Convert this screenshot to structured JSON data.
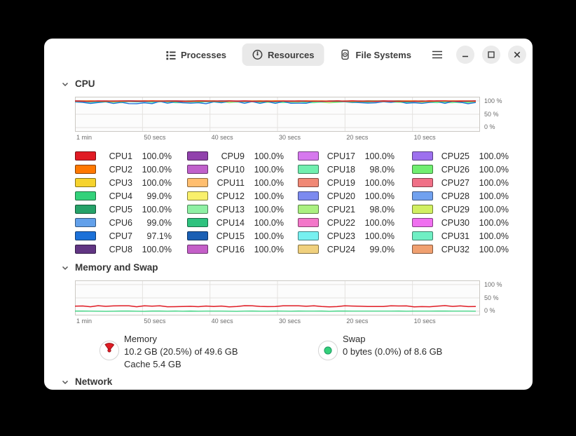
{
  "header": {
    "tabs": [
      {
        "label": "Processes",
        "icon": "list-icon",
        "selected": false
      },
      {
        "label": "Resources",
        "icon": "gauge-icon",
        "selected": true
      },
      {
        "label": "File Systems",
        "icon": "disk-icon",
        "selected": false
      }
    ],
    "menu_icon": "hamburger-menu-icon",
    "window_controls": [
      "minimize",
      "maximize",
      "close"
    ]
  },
  "cpu": {
    "title": "CPU",
    "yticks": [
      "100 %",
      "50 %",
      "0 %"
    ],
    "xticks": [
      "1 min",
      "50 secs",
      "40 secs",
      "30 secs",
      "20 secs",
      "10 secs"
    ],
    "legend": [
      {
        "name": "CPU1",
        "value": "100.0%",
        "color": "#e01b24"
      },
      {
        "name": "CPU2",
        "value": "100.0%",
        "color": "#ff7800"
      },
      {
        "name": "CPU3",
        "value": "100.0%",
        "color": "#f6d32d"
      },
      {
        "name": "CPU4",
        "value": "99.0%",
        "color": "#33d17a"
      },
      {
        "name": "CPU5",
        "value": "100.0%",
        "color": "#26a269"
      },
      {
        "name": "CPU6",
        "value": "99.0%",
        "color": "#62a0ea"
      },
      {
        "name": "CPU7",
        "value": "97.1%",
        "color": "#1c71d8"
      },
      {
        "name": "CPU8",
        "value": "100.0%",
        "color": "#613583"
      },
      {
        "name": "CPU9",
        "value": "100.0%",
        "color": "#9141ac"
      },
      {
        "name": "CPU10",
        "value": "100.0%",
        "color": "#c061cb"
      },
      {
        "name": "CPU11",
        "value": "100.0%",
        "color": "#ffbe6f"
      },
      {
        "name": "CPU12",
        "value": "100.0%",
        "color": "#f9f06b"
      },
      {
        "name": "CPU13",
        "value": "100.0%",
        "color": "#8ff0a4"
      },
      {
        "name": "CPU14",
        "value": "100.0%",
        "color": "#2ec27e"
      },
      {
        "name": "CPU15",
        "value": "100.0%",
        "color": "#1a5fb4"
      },
      {
        "name": "CPU16",
        "value": "100.0%",
        "color": "#c45fc8"
      },
      {
        "name": "CPU17",
        "value": "100.0%",
        "color": "#d678ee"
      },
      {
        "name": "CPU18",
        "value": "98.0%",
        "color": "#70efaf"
      },
      {
        "name": "CPU19",
        "value": "100.0%",
        "color": "#f08875"
      },
      {
        "name": "CPU20",
        "value": "100.0%",
        "color": "#7c8aef"
      },
      {
        "name": "CPU21",
        "value": "98.0%",
        "color": "#aaf080"
      },
      {
        "name": "CPU22",
        "value": "100.0%",
        "color": "#f377c9"
      },
      {
        "name": "CPU23",
        "value": "100.0%",
        "color": "#77f0f0"
      },
      {
        "name": "CPU24",
        "value": "99.0%",
        "color": "#f0d07d"
      },
      {
        "name": "CPU25",
        "value": "100.0%",
        "color": "#9d70ee"
      },
      {
        "name": "CPU26",
        "value": "100.0%",
        "color": "#70ee70"
      },
      {
        "name": "CPU27",
        "value": "100.0%",
        "color": "#f07087"
      },
      {
        "name": "CPU28",
        "value": "100.0%",
        "color": "#71a1ef"
      },
      {
        "name": "CPU29",
        "value": "100.0%",
        "color": "#d1ef61"
      },
      {
        "name": "CPU30",
        "value": "100.0%",
        "color": "#f070f0"
      },
      {
        "name": "CPU31",
        "value": "100.0%",
        "color": "#70efc4"
      },
      {
        "name": "CPU32",
        "value": "100.0%",
        "color": "#f0a070"
      }
    ]
  },
  "memory": {
    "title": "Memory and Swap",
    "yticks": [
      "100 %",
      "50 %",
      "0 %"
    ],
    "xticks": [
      "1 min",
      "50 secs",
      "40 secs",
      "30 secs",
      "20 secs",
      "10 secs"
    ],
    "mem": {
      "label": "Memory",
      "usage": "10.2 GB (20.5%) of 49.6 GB",
      "cache": "Cache 5.4 GB",
      "percent": 20.5,
      "color": "#e01b24",
      "icon": "memory-pie-icon"
    },
    "swap": {
      "label": "Swap",
      "usage": "0 bytes (0.0%) of 8.6 GB",
      "percent": 0.0,
      "color": "#33d17a",
      "icon": "swap-pie-icon"
    }
  },
  "network": {
    "title": "Network"
  }
}
